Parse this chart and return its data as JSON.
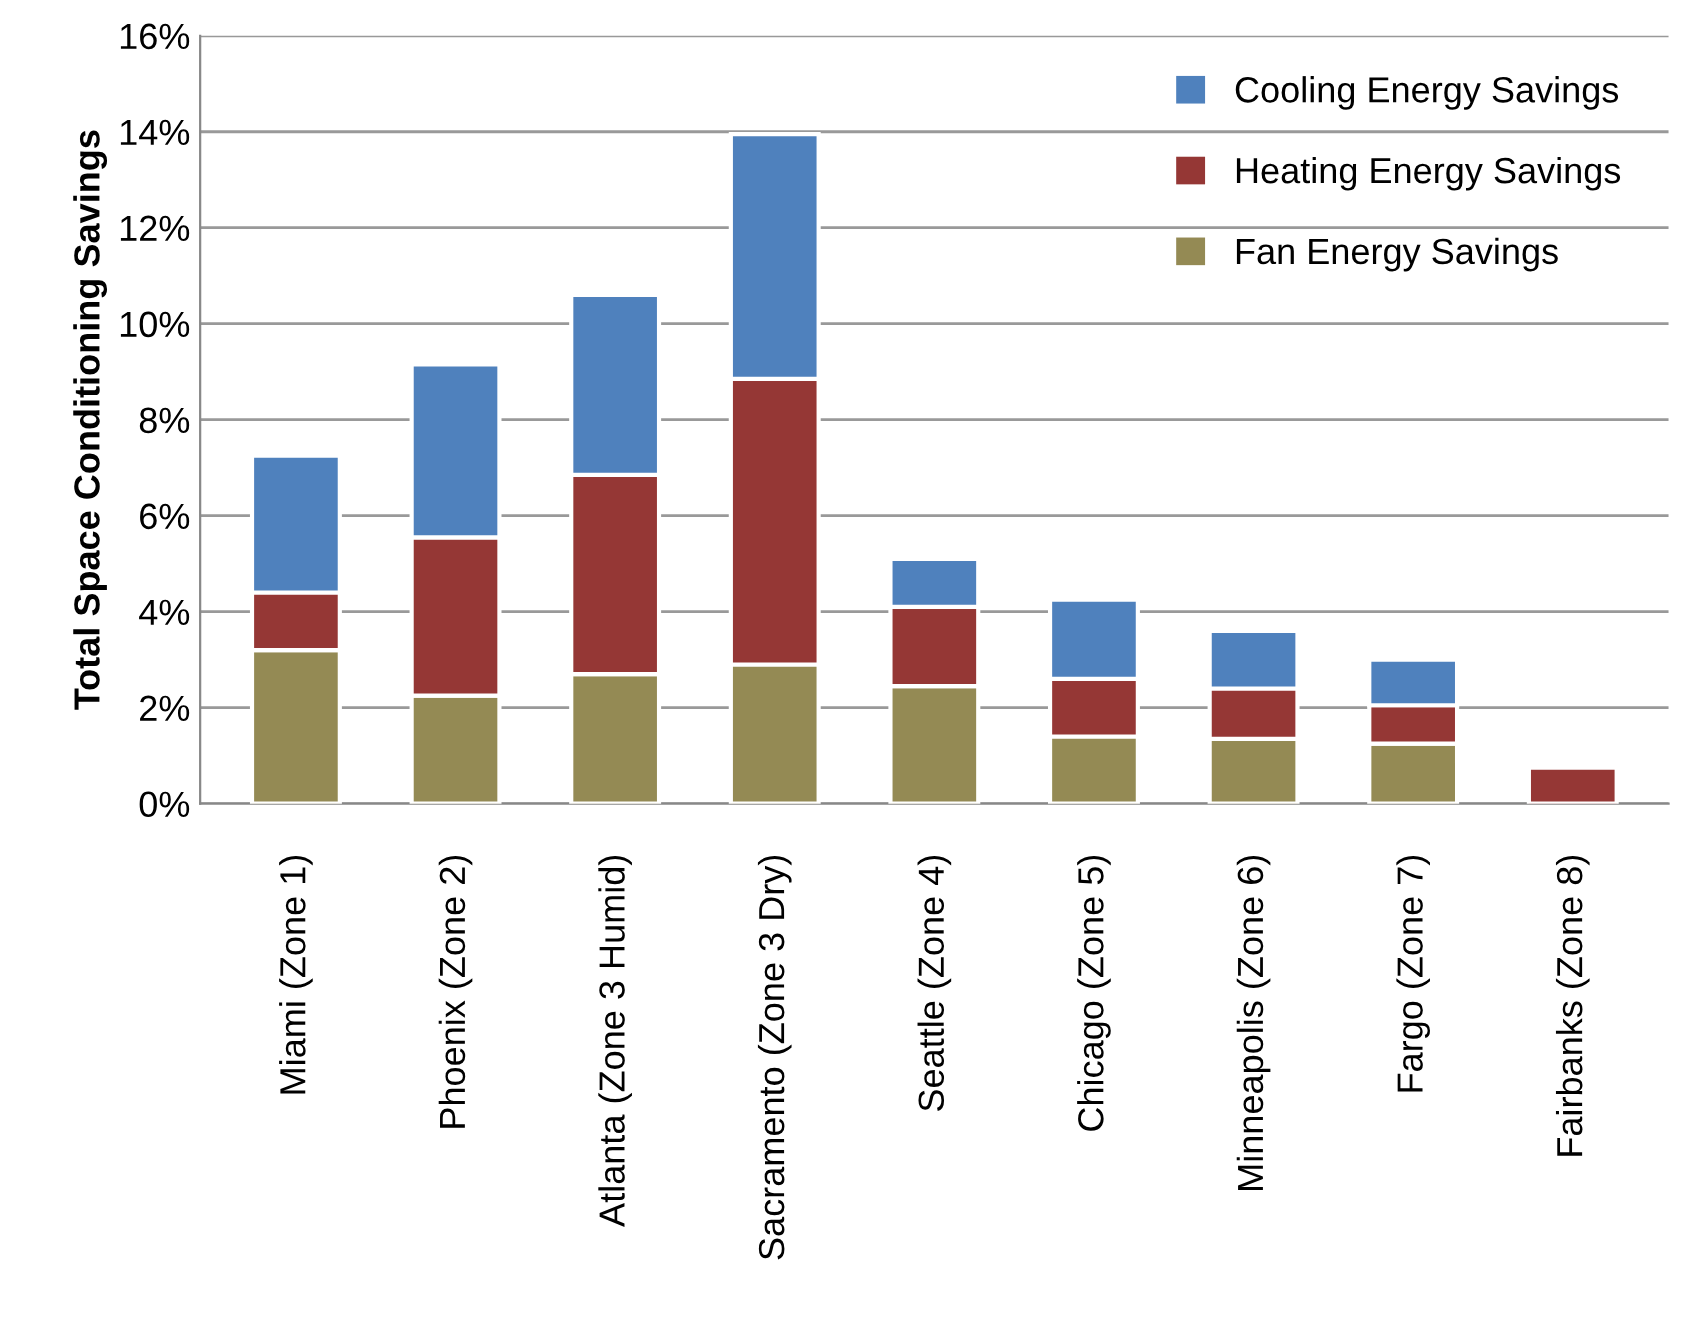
{
  "chart_data": {
    "type": "bar",
    "stacked": true,
    "ylabel": "Total Space Conditioning Savings",
    "categories": [
      "Miami (Zone 1)",
      "Phoenix (Zone 2)",
      "Atlanta (Zone 3 Humid)",
      "Sacramento (Zone 3 Dry)",
      "Seattle (Zone 4)",
      "Chicago (Zone 5)",
      "Minneapolis (Zone 6)",
      "Fargo (Zone 7)",
      "Fairbanks (Zone 8)"
    ],
    "series": [
      {
        "name": "Fan Energy Savings",
        "color": "#948a54",
        "values": [
          3.2,
          2.25,
          2.7,
          2.9,
          2.45,
          1.4,
          1.35,
          1.25,
          null
        ]
      },
      {
        "name": "Heating Energy Savings",
        "color": "#953735",
        "values": [
          1.2,
          3.3,
          4.15,
          5.95,
          1.65,
          1.2,
          1.05,
          0.8,
          0.75
        ]
      },
      {
        "name": "Cooling Energy Savings",
        "color": "#4f81bd",
        "values": [
          2.85,
          3.6,
          3.75,
          5.1,
          1.0,
          1.65,
          1.2,
          0.95,
          null
        ]
      }
    ],
    "ylim": [
      0,
      16
    ],
    "yticks": [
      {
        "value": 0,
        "label": "0%"
      },
      {
        "value": 2,
        "label": "2%"
      },
      {
        "value": 4,
        "label": "4%"
      },
      {
        "value": 6,
        "label": "6%"
      },
      {
        "value": 8,
        "label": "8%"
      },
      {
        "value": 10,
        "label": "10%"
      },
      {
        "value": 12,
        "label": "12%"
      },
      {
        "value": 14,
        "label": "14%"
      },
      {
        "value": 16,
        "label": "16%"
      }
    ],
    "grid": "y",
    "legend": "top right"
  }
}
